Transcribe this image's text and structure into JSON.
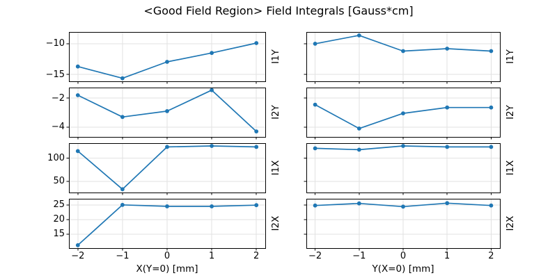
{
  "chart_data": {
    "type": "line",
    "title": "<Good Field Region> Field Integrals [Gauss*cm]",
    "grid": true,
    "legend": "none",
    "line_color": "#1f77b4",
    "layout_hint": "4 rows x 2 columns; shared x per column, shared y per row; y tick labels only on left column; x tick labels only on bottom row; row labels rotated on right side",
    "x": [
      -2,
      -1,
      0,
      1,
      2
    ],
    "xticks": [
      -2,
      -1,
      0,
      1,
      2
    ],
    "xlim": [
      -2.2,
      2.2
    ],
    "columns": [
      {
        "xlabel": "X(Y=0) [mm]"
      },
      {
        "xlabel": "Y(X=0) [mm]"
      }
    ],
    "rows": [
      {
        "label": "I1Y",
        "yticks": [
          -15,
          -10
        ],
        "ylim": [
          -16.1,
          -8.1
        ],
        "series": [
          {
            "name": "I1Y vs X",
            "values": [
              -13.7,
              -15.6,
              -12.95,
              -11.5,
              -9.9
            ]
          },
          {
            "name": "I1Y vs Y",
            "values": [
              -10.0,
              -8.65,
              -11.2,
              -10.8,
              -11.2
            ]
          }
        ]
      },
      {
        "label": "I2Y",
        "yticks": [
          -4,
          -2
        ],
        "ylim": [
          -4.68,
          -1.27
        ],
        "series": [
          {
            "name": "I2Y vs X",
            "values": [
              -1.8,
              -3.3,
              -2.9,
              -1.45,
              -4.3
            ]
          },
          {
            "name": "I2Y vs Y",
            "values": [
              -2.45,
              -4.1,
              -3.05,
              -2.65,
              -2.65
            ]
          }
        ]
      },
      {
        "label": "I1X",
        "yticks": [
          50,
          100
        ],
        "ylim": [
          26,
          132
        ],
        "series": [
          {
            "name": "I1X vs X",
            "values": [
              115,
              33,
              124,
              126,
              124
            ]
          },
          {
            "name": "I1X vs Y",
            "values": [
              121,
              118,
              126,
              124,
              124
            ]
          }
        ]
      },
      {
        "label": "I2X",
        "yticks": [
          15,
          20,
          25
        ],
        "ylim": [
          10.2,
          27.1
        ],
        "series": [
          {
            "name": "I2X vs X",
            "values": [
              11.2,
              25.0,
              24.5,
              24.5,
              24.9
            ]
          },
          {
            "name": "I2X vs Y",
            "values": [
              24.8,
              25.5,
              24.4,
              25.6,
              24.8
            ]
          }
        ]
      }
    ]
  }
}
